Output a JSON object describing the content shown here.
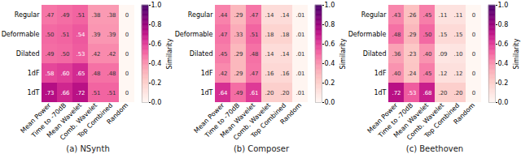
{
  "chart_data": [
    {
      "type": "heatmap",
      "title": "(a) NSynth",
      "x_categories": [
        "Mean Power",
        "Time to -70dB",
        "Mean Wavelet",
        "Comb. Wavelet",
        "Top Combined",
        "Random"
      ],
      "y_categories": [
        "Regular",
        "Deformable",
        "Dilated",
        "1dF",
        "1dT"
      ],
      "values": [
        [
          0.47,
          0.49,
          0.51,
          0.38,
          0.38,
          0.0
        ],
        [
          0.5,
          0.51,
          0.54,
          0.39,
          0.39,
          0.0
        ],
        [
          0.49,
          0.5,
          0.53,
          0.42,
          0.42,
          0.0
        ],
        [
          0.58,
          0.6,
          0.65,
          0.48,
          0.48,
          0.0
        ],
        [
          0.73,
          0.66,
          0.72,
          0.51,
          0.51,
          0.0
        ]
      ],
      "value_labels": [
        [
          ".47",
          ".49",
          ".51",
          ".38",
          ".38",
          "0"
        ],
        [
          ".50",
          ".51",
          ".54",
          ".39",
          ".39",
          "0"
        ],
        [
          ".49",
          ".50",
          ".53",
          ".42",
          ".42",
          "0"
        ],
        [
          ".58",
          ".60",
          ".65",
          ".48",
          ".48",
          "0"
        ],
        [
          ".73",
          ".66",
          ".72",
          ".51",
          ".51",
          "0"
        ]
      ],
      "data_labels": true,
      "color": "RdPu",
      "colorbar": {
        "label": "Similarity",
        "range": [
          0.0,
          1.0
        ],
        "ticks": [
          {
            "value": 0.0,
            "label": "0.0"
          },
          {
            "value": 0.2,
            "label": "0.2"
          },
          {
            "value": 0.4,
            "label": "0.4"
          },
          {
            "value": 0.6,
            "label": "0.6"
          },
          {
            "value": 0.8,
            "label": "0.8"
          },
          {
            "value": 1.0,
            "label": "1.0"
          }
        ]
      }
    },
    {
      "type": "heatmap",
      "title": "(b) Composer",
      "x_categories": [
        "Mean Power",
        "Time to -70dB",
        "Mean Wavelet",
        "Comb. Wavelet",
        "Top Combined",
        "Random"
      ],
      "y_categories": [
        "Regular",
        "Deformable",
        "Dilated",
        "1dF",
        "1dT"
      ],
      "values": [
        [
          0.44,
          0.29,
          0.47,
          0.14,
          0.14,
          0.01
        ],
        [
          0.47,
          0.33,
          0.51,
          0.18,
          0.18,
          0.01
        ],
        [
          0.45,
          0.29,
          0.48,
          0.14,
          0.14,
          0.01
        ],
        [
          0.42,
          0.29,
          0.47,
          0.16,
          0.16,
          0.01
        ],
        [
          0.64,
          0.49,
          0.61,
          0.2,
          0.2,
          0.01
        ]
      ],
      "value_labels": [
        [
          ".44",
          ".29",
          ".47",
          ".14",
          ".14",
          ".01"
        ],
        [
          ".47",
          ".33",
          ".51",
          ".18",
          ".18",
          ".01"
        ],
        [
          ".45",
          ".29",
          ".48",
          ".14",
          ".14",
          ".01"
        ],
        [
          ".42",
          ".29",
          ".47",
          ".16",
          ".16",
          ".01"
        ],
        [
          ".64",
          ".49",
          ".61",
          ".20",
          ".20",
          ".01"
        ]
      ],
      "data_labels": true,
      "color": "RdPu",
      "colorbar": {
        "label": "Similarity",
        "range": [
          0.0,
          1.0
        ],
        "ticks": [
          {
            "value": 0.0,
            "label": "0.0"
          },
          {
            "value": 0.2,
            "label": "0.2"
          },
          {
            "value": 0.4,
            "label": "0.4"
          },
          {
            "value": 0.6,
            "label": "0.6"
          },
          {
            "value": 0.8,
            "label": "0.8"
          },
          {
            "value": 1.0,
            "label": "1.0"
          }
        ]
      }
    },
    {
      "type": "heatmap",
      "title": "(c) Beethoven",
      "x_categories": [
        "Mean Power",
        "Time to -70dB",
        "Mean Wavelet",
        "Comb. Wavelet",
        "Top Combined",
        "Random"
      ],
      "y_categories": [
        "Regular",
        "Deformable",
        "Dilated",
        "1dF",
        "1dT"
      ],
      "values": [
        [
          0.43,
          0.26,
          0.45,
          0.11,
          0.11,
          0.0
        ],
        [
          0.48,
          0.29,
          0.5,
          0.15,
          0.15,
          0.0
        ],
        [
          0.36,
          0.23,
          0.4,
          0.09,
          0.1,
          0.0
        ],
        [
          0.4,
          0.24,
          0.45,
          0.12,
          0.12,
          0.0
        ],
        [
          0.72,
          0.53,
          0.68,
          0.2,
          0.2,
          0.0
        ]
      ],
      "value_labels": [
        [
          ".43",
          ".26",
          ".45",
          ".11",
          ".11",
          "0"
        ],
        [
          ".48",
          ".29",
          ".50",
          ".15",
          ".15",
          "0"
        ],
        [
          ".36",
          ".23",
          ".40",
          ".09",
          ".10",
          "0"
        ],
        [
          ".40",
          ".24",
          ".45",
          ".12",
          ".12",
          "0"
        ],
        [
          ".72",
          ".53",
          ".68",
          ".20",
          ".20",
          "0"
        ]
      ],
      "data_labels": true,
      "color": "RdPu",
      "colorbar": {
        "label": "Similarity",
        "range": [
          0.0,
          1.0
        ],
        "ticks": [
          {
            "value": 0.0,
            "label": "0.0"
          },
          {
            "value": 0.2,
            "label": "0.2"
          },
          {
            "value": 0.4,
            "label": "0.4"
          },
          {
            "value": 0.6,
            "label": "0.6"
          },
          {
            "value": 0.8,
            "label": "0.8"
          },
          {
            "value": 1.0,
            "label": "1.0"
          }
        ]
      }
    }
  ]
}
